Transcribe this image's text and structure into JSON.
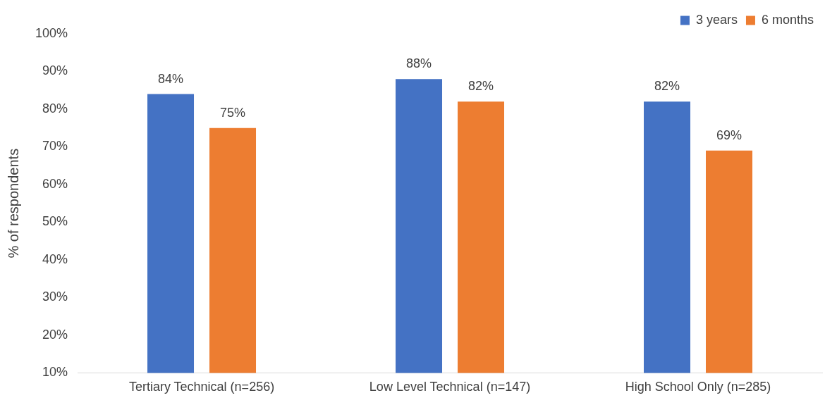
{
  "chart_data": {
    "type": "bar",
    "ylabel": "% of respondents",
    "categories": [
      "Tertiary Technical (n=256)",
      "Low Level Technical (n=147)",
      "High School Only (n=285)"
    ],
    "series": [
      {
        "name": "3 years",
        "color": "#4472c4",
        "values": [
          84,
          88,
          82
        ],
        "value_labels": [
          "84%",
          "88%",
          "82%"
        ]
      },
      {
        "name": "6 months",
        "color": "#ed7d31",
        "values": [
          75,
          82,
          69
        ],
        "value_labels": [
          "75%",
          "82%",
          "69%"
        ]
      }
    ],
    "ylim": [
      10,
      100
    ],
    "yticks": [
      {
        "value": 10,
        "label": "10%"
      },
      {
        "value": 20,
        "label": "20%"
      },
      {
        "value": 30,
        "label": "30%"
      },
      {
        "value": 40,
        "label": "40%"
      },
      {
        "value": 50,
        "label": "50%"
      },
      {
        "value": 60,
        "label": "60%"
      },
      {
        "value": 70,
        "label": "70%"
      },
      {
        "value": 80,
        "label": "80%"
      },
      {
        "value": 90,
        "label": "90%"
      },
      {
        "value": 100,
        "label": "100%"
      }
    ],
    "grid": false,
    "legend": "top right"
  }
}
